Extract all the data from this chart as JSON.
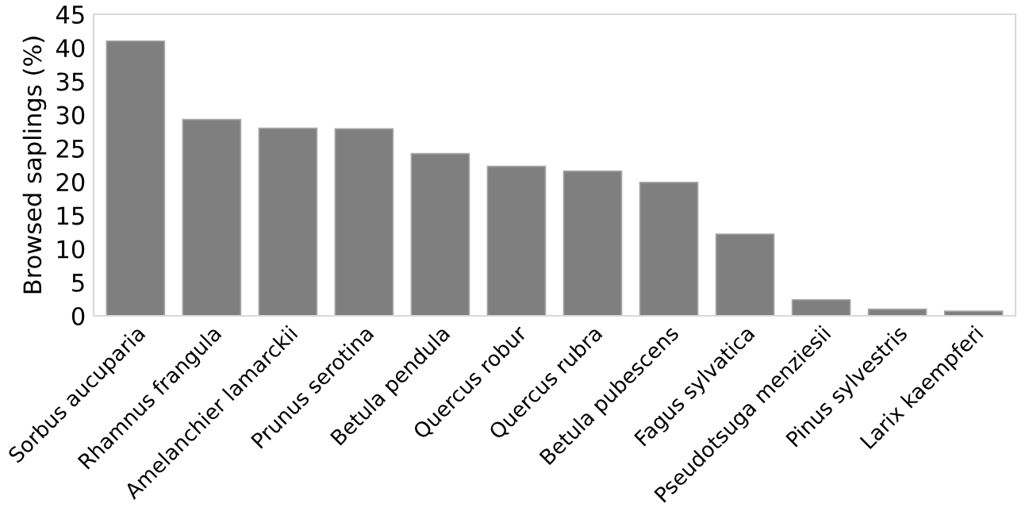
{
  "chart_data": {
    "type": "bar",
    "ylabel": "Browsed saplings (%)",
    "categories": [
      "Sorbus aucuparia",
      "Rhamnus frangula",
      "Amelanchier lamarckii",
      "Prunus serotina",
      "Betula pendula",
      "Quercus robur",
      "Quercus rubra",
      "Betula pubescens",
      "Fagus sylvatica",
      "Pseudotsuga menziesii",
      "Pinus sylvestris",
      "Larix kaempferi"
    ],
    "values": [
      41.0,
      29.3,
      28.0,
      27.9,
      24.2,
      22.3,
      21.6,
      19.9,
      12.2,
      2.4,
      1.0,
      0.7
    ],
    "color": "#7f7f7f",
    "ylim": [
      0,
      45
    ],
    "yticks": [
      0,
      5,
      10,
      15,
      20,
      25,
      30,
      35,
      40,
      45
    ],
    "grid": false,
    "legend": false
  }
}
